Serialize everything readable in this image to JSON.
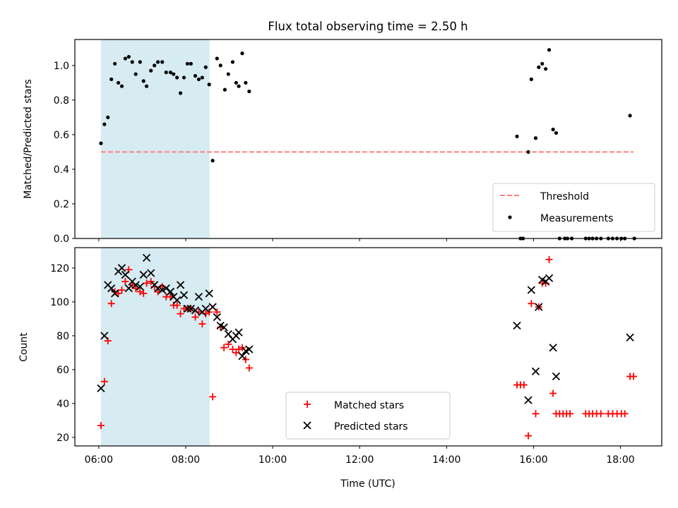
{
  "figure": {
    "title": "Flux total observing time = 2.50 h",
    "xlabel": "Time (UTC)"
  },
  "chart_data": [
    {
      "type": "scatter",
      "panel": "top",
      "title": "Flux total observing time = 2.50 h",
      "xlabel": "",
      "ylabel": "Matched/Predicted stars",
      "x_unit": "hours UTC",
      "xlim": [
        5.45,
        18.95
      ],
      "ylim": [
        0,
        1.15
      ],
      "yticks": [
        "0.0",
        "0.2",
        "0.4",
        "0.6",
        "0.8",
        "1.0"
      ],
      "xticks": [
        "06:00",
        "08:00",
        "10:00",
        "12:00",
        "14:00",
        "16:00",
        "18:00"
      ],
      "shaded_span": {
        "x0": 6.05,
        "x1": 8.55,
        "color": "#add8e6"
      },
      "threshold": {
        "name": "Threshold",
        "y": 0.5,
        "x0": 6.05,
        "x1": 18.3,
        "color": "#ff7f7f",
        "style": "dashed"
      },
      "legend": {
        "placement": "lower right",
        "entries": [
          "Threshold",
          "Measurements"
        ]
      },
      "series": [
        {
          "name": "Measurements",
          "color": "#000000",
          "marker": "dot",
          "points": [
            [
              6.05,
              0.55
            ],
            [
              6.13,
              0.66
            ],
            [
              6.21,
              0.7
            ],
            [
              6.29,
              0.92
            ],
            [
              6.37,
              1.01
            ],
            [
              6.45,
              0.9
            ],
            [
              6.53,
              0.88
            ],
            [
              6.61,
              1.04
            ],
            [
              6.69,
              1.05
            ],
            [
              6.77,
              1.02
            ],
            [
              6.85,
              0.95
            ],
            [
              6.95,
              1.02
            ],
            [
              7.03,
              0.91
            ],
            [
              7.1,
              0.88
            ],
            [
              7.2,
              0.97
            ],
            [
              7.28,
              1.0
            ],
            [
              7.36,
              1.02
            ],
            [
              7.46,
              1.02
            ],
            [
              7.55,
              0.96
            ],
            [
              7.65,
              0.96
            ],
            [
              7.72,
              0.95
            ],
            [
              7.8,
              0.93
            ],
            [
              7.88,
              0.84
            ],
            [
              7.96,
              0.93
            ],
            [
              8.04,
              1.01
            ],
            [
              8.12,
              1.01
            ],
            [
              8.22,
              0.94
            ],
            [
              8.3,
              0.92
            ],
            [
              8.38,
              0.93
            ],
            [
              8.46,
              0.99
            ],
            [
              8.54,
              0.89
            ],
            [
              8.62,
              0.45
            ],
            [
              8.72,
              1.04
            ],
            [
              8.8,
              1.0
            ],
            [
              8.9,
              0.86
            ],
            [
              8.98,
              0.95
            ],
            [
              9.08,
              1.02
            ],
            [
              9.16,
              0.9
            ],
            [
              9.22,
              0.88
            ],
            [
              9.3,
              1.07
            ],
            [
              9.38,
              0.9
            ],
            [
              9.46,
              0.85
            ],
            [
              15.62,
              0.59
            ],
            [
              15.7,
              0.0
            ],
            [
              15.76,
              0.0
            ],
            [
              15.88,
              0.5
            ],
            [
              15.95,
              0.92
            ],
            [
              16.05,
              0.58
            ],
            [
              16.12,
              0.99
            ],
            [
              16.2,
              1.01
            ],
            [
              16.28,
              0.98
            ],
            [
              16.36,
              1.09
            ],
            [
              16.45,
              0.63
            ],
            [
              16.52,
              0.61
            ],
            [
              16.6,
              0.0
            ],
            [
              16.72,
              0.0
            ],
            [
              16.78,
              0.0
            ],
            [
              16.88,
              0.0
            ],
            [
              17.2,
              0.0
            ],
            [
              17.28,
              0.0
            ],
            [
              17.36,
              0.0
            ],
            [
              17.45,
              0.0
            ],
            [
              17.55,
              0.0
            ],
            [
              17.72,
              0.0
            ],
            [
              17.82,
              0.0
            ],
            [
              17.92,
              0.0
            ],
            [
              18.02,
              0.0
            ],
            [
              18.1,
              0.0
            ],
            [
              18.22,
              0.71
            ],
            [
              18.32,
              0.0
            ]
          ]
        }
      ]
    },
    {
      "type": "scatter",
      "panel": "bottom",
      "xlabel": "Time (UTC)",
      "ylabel": "Count",
      "x_unit": "hours UTC",
      "xlim": [
        5.45,
        18.95
      ],
      "ylim": [
        15,
        132
      ],
      "yticks": [
        "20",
        "40",
        "60",
        "80",
        "100",
        "120"
      ],
      "xticks": [
        "06:00",
        "08:00",
        "10:00",
        "12:00",
        "14:00",
        "16:00",
        "18:00"
      ],
      "shaded_span": {
        "x0": 6.05,
        "x1": 8.55,
        "color": "#add8e6"
      },
      "legend": {
        "placement": "lower center",
        "entries": [
          "Matched stars",
          "Predicted stars"
        ]
      },
      "series": [
        {
          "name": "Matched stars",
          "color": "#ff0000",
          "marker": "plus",
          "points": [
            [
              6.05,
              27
            ],
            [
              6.13,
              53
            ],
            [
              6.21,
              77
            ],
            [
              6.29,
              99
            ],
            [
              6.37,
              106
            ],
            [
              6.45,
              105
            ],
            [
              6.53,
              107
            ],
            [
              6.61,
              112
            ],
            [
              6.69,
              119
            ],
            [
              6.77,
              110
            ],
            [
              6.85,
              108
            ],
            [
              6.95,
              106
            ],
            [
              7.03,
              105
            ],
            [
              7.1,
              111
            ],
            [
              7.2,
              112
            ],
            [
              7.28,
              109
            ],
            [
              7.36,
              106
            ],
            [
              7.46,
              109
            ],
            [
              7.55,
              103
            ],
            [
              7.65,
              103
            ],
            [
              7.72,
              98
            ],
            [
              7.8,
              98
            ],
            [
              7.88,
              93
            ],
            [
              7.96,
              96
            ],
            [
              8.04,
              96
            ],
            [
              8.12,
              96
            ],
            [
              8.22,
              91
            ],
            [
              8.3,
              94
            ],
            [
              8.38,
              87
            ],
            [
              8.46,
              93
            ],
            [
              8.54,
              94
            ],
            [
              8.62,
              44
            ],
            [
              8.72,
              94
            ],
            [
              8.8,
              85
            ],
            [
              8.88,
              73
            ],
            [
              8.98,
              75
            ],
            [
              9.08,
              72
            ],
            [
              9.16,
              70
            ],
            [
              9.22,
              72
            ],
            [
              9.3,
              73
            ],
            [
              9.38,
              66
            ],
            [
              9.46,
              61
            ],
            [
              15.62,
              51
            ],
            [
              15.7,
              51
            ],
            [
              15.78,
              51
            ],
            [
              15.88,
              21
            ],
            [
              15.95,
              99
            ],
            [
              16.05,
              34
            ],
            [
              16.12,
              97
            ],
            [
              16.2,
              111
            ],
            [
              16.28,
              111
            ],
            [
              16.36,
              125
            ],
            [
              16.45,
              46
            ],
            [
              16.52,
              34
            ],
            [
              16.6,
              34
            ],
            [
              16.68,
              34
            ],
            [
              16.76,
              34
            ],
            [
              16.84,
              34
            ],
            [
              17.2,
              34
            ],
            [
              17.28,
              34
            ],
            [
              17.36,
              34
            ],
            [
              17.45,
              34
            ],
            [
              17.55,
              34
            ],
            [
              17.72,
              34
            ],
            [
              17.82,
              34
            ],
            [
              17.92,
              34
            ],
            [
              18.02,
              34
            ],
            [
              18.1,
              34
            ],
            [
              18.22,
              56
            ],
            [
              18.3,
              56
            ]
          ]
        },
        {
          "name": "Predicted stars",
          "color": "#000000",
          "marker": "x",
          "points": [
            [
              6.05,
              49
            ],
            [
              6.13,
              80
            ],
            [
              6.21,
              110
            ],
            [
              6.29,
              108
            ],
            [
              6.37,
              105
            ],
            [
              6.45,
              118
            ],
            [
              6.53,
              120
            ],
            [
              6.61,
              116
            ],
            [
              6.69,
              108
            ],
            [
              6.77,
              112
            ],
            [
              6.85,
              110
            ],
            [
              6.95,
              109
            ],
            [
              7.03,
              116
            ],
            [
              7.1,
              126
            ],
            [
              7.2,
              117
            ],
            [
              7.28,
              110
            ],
            [
              7.36,
              108
            ],
            [
              7.46,
              107
            ],
            [
              7.55,
              108
            ],
            [
              7.65,
              106
            ],
            [
              7.72,
              103
            ],
            [
              7.8,
              101
            ],
            [
              7.88,
              110
            ],
            [
              7.96,
              104
            ],
            [
              8.04,
              96
            ],
            [
              8.12,
              96
            ],
            [
              8.22,
              95
            ],
            [
              8.3,
              103
            ],
            [
              8.38,
              94
            ],
            [
              8.46,
              96
            ],
            [
              8.54,
              105
            ],
            [
              8.62,
              97
            ],
            [
              8.72,
              91
            ],
            [
              8.8,
              86
            ],
            [
              8.88,
              85
            ],
            [
              8.98,
              81
            ],
            [
              9.08,
              78
            ],
            [
              9.16,
              80
            ],
            [
              9.22,
              82
            ],
            [
              9.3,
              68
            ],
            [
              9.38,
              71
            ],
            [
              9.46,
              72
            ],
            [
              15.62,
              86
            ],
            [
              15.88,
              42
            ],
            [
              15.95,
              107
            ],
            [
              16.05,
              59
            ],
            [
              16.12,
              97
            ],
            [
              16.2,
              113
            ],
            [
              16.28,
              112
            ],
            [
              16.36,
              114
            ],
            [
              16.45,
              73
            ],
            [
              16.52,
              56
            ],
            [
              18.22,
              79
            ]
          ]
        }
      ]
    }
  ]
}
